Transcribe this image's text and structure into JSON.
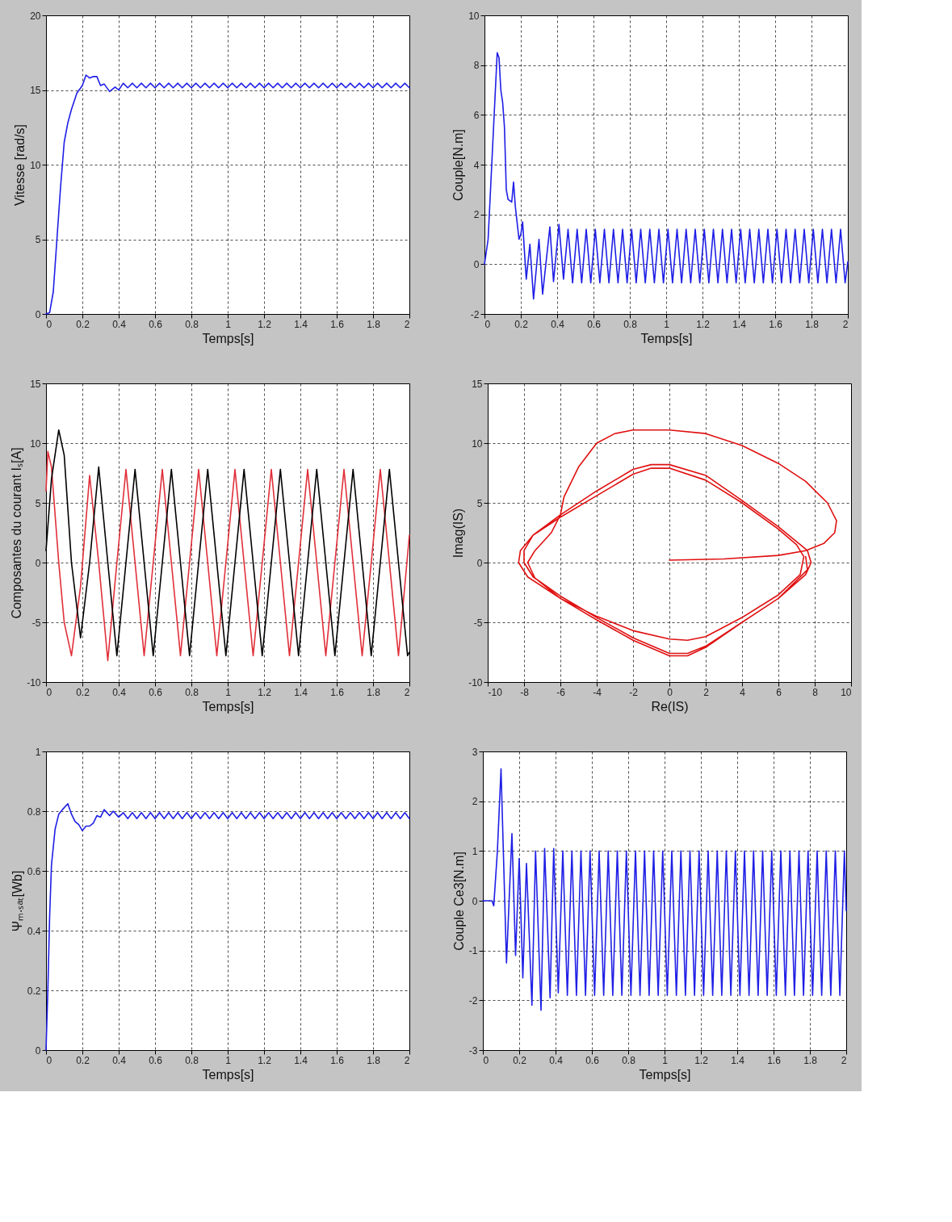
{
  "chart_data": [
    {
      "type": "line",
      "xlabel": "Temps[s]",
      "ylabel": "Vitesse [rad/s]",
      "xlim": [
        0,
        2
      ],
      "ylim": [
        0,
        20
      ],
      "xticks": [
        0,
        0.2,
        0.4,
        0.6,
        0.8,
        1,
        1.2,
        1.4,
        1.6,
        1.8,
        2
      ],
      "yticks": [
        0,
        5,
        10,
        15,
        20
      ],
      "grid": true,
      "series": [
        {
          "color": "#1f1fe6",
          "x": [
            0,
            0.02,
            0.04,
            0.06,
            0.08,
            0.1,
            0.12,
            0.14,
            0.17,
            0.2,
            0.22,
            0.24,
            0.26,
            0.28,
            0.3,
            0.32,
            0.35,
            0.38,
            0.4,
            0.425,
            0.45,
            0.475,
            0.5,
            0.525,
            0.55,
            0.575,
            0.6,
            0.625,
            0.65,
            0.675,
            0.7,
            0.725,
            0.75,
            0.775,
            0.8,
            0.825,
            0.85,
            0.875,
            0.9,
            0.925,
            0.95,
            0.975,
            1,
            1.025,
            1.05,
            1.075,
            1.1,
            1.125,
            1.15,
            1.175,
            1.2,
            1.225,
            1.25,
            1.275,
            1.3,
            1.325,
            1.35,
            1.375,
            1.4,
            1.425,
            1.45,
            1.475,
            1.5,
            1.525,
            1.55,
            1.575,
            1.6,
            1.625,
            1.65,
            1.675,
            1.7,
            1.725,
            1.75,
            1.775,
            1.8,
            1.825,
            1.85,
            1.875,
            1.9,
            1.925,
            1.95,
            1.975,
            2
          ],
          "values": [
            0,
            0.1,
            1.5,
            5,
            8.5,
            11.5,
            12.8,
            13.7,
            14.8,
            15.3,
            16,
            15.8,
            15.9,
            15.9,
            15.3,
            15.4,
            14.9,
            15.2,
            15.0,
            15.45,
            15.15,
            15.45,
            15.15,
            15.45,
            15.15,
            15.45,
            15.15,
            15.45,
            15.15,
            15.45,
            15.15,
            15.45,
            15.15,
            15.45,
            15.15,
            15.45,
            15.15,
            15.45,
            15.15,
            15.45,
            15.15,
            15.45,
            15.15,
            15.45,
            15.15,
            15.45,
            15.15,
            15.45,
            15.15,
            15.45,
            15.15,
            15.45,
            15.15,
            15.45,
            15.15,
            15.45,
            15.15,
            15.45,
            15.15,
            15.45,
            15.15,
            15.45,
            15.15,
            15.45,
            15.15,
            15.45,
            15.15,
            15.45,
            15.15,
            15.45,
            15.15,
            15.45,
            15.15,
            15.45,
            15.15,
            15.45,
            15.15,
            15.45,
            15.15,
            15.45,
            15.15,
            15.45,
            15.15
          ]
        }
      ]
    },
    {
      "type": "line",
      "xlabel": "Temps[s]",
      "ylabel": "Couple[N.m]",
      "xlim": [
        0,
        2
      ],
      "ylim": [
        -2,
        10
      ],
      "xticks": [
        0,
        0.2,
        0.4,
        0.6,
        0.8,
        1,
        1.2,
        1.4,
        1.6,
        1.8,
        2
      ],
      "yticks": [
        -2,
        0,
        2,
        4,
        6,
        8,
        10
      ],
      "grid": true,
      "series": [
        {
          "color": "#1f1fe6",
          "x": [
            0,
            0.02,
            0.04,
            0.06,
            0.07,
            0.08,
            0.09,
            0.1,
            0.11,
            0.12,
            0.13,
            0.15,
            0.16,
            0.17,
            0.19,
            0.2,
            0.21,
            0.22,
            0.23,
            0.25,
            0.27,
            0.3,
            0.32,
            0.36,
            0.38,
            0.41,
            0.435,
            0.46,
            0.485,
            0.51,
            0.535,
            0.56,
            0.585,
            0.61,
            0.635,
            0.66,
            0.685,
            0.71,
            0.735,
            0.76,
            0.785,
            0.81,
            0.835,
            0.86,
            0.885,
            0.91,
            0.935,
            0.96,
            0.985,
            1.01,
            1.035,
            1.06,
            1.085,
            1.11,
            1.135,
            1.16,
            1.185,
            1.21,
            1.235,
            1.26,
            1.285,
            1.31,
            1.335,
            1.36,
            1.385,
            1.41,
            1.435,
            1.46,
            1.485,
            1.51,
            1.535,
            1.56,
            1.585,
            1.61,
            1.635,
            1.66,
            1.685,
            1.71,
            1.735,
            1.76,
            1.785,
            1.81,
            1.835,
            1.86,
            1.885,
            1.91,
            1.935,
            1.96,
            1.985,
            2
          ],
          "values": [
            0,
            1,
            4,
            7,
            8.5,
            8.3,
            7,
            6.5,
            5.5,
            3,
            2.6,
            2.5,
            3.3,
            2.3,
            1,
            1.2,
            1.7,
            0.5,
            -0.6,
            0.8,
            -1.4,
            1,
            -1.2,
            1.5,
            -0.7,
            1.6,
            -0.6,
            1.4,
            -0.75,
            1.4,
            -0.75,
            1.4,
            -0.75,
            1.4,
            -0.75,
            1.4,
            -0.75,
            1.4,
            -0.75,
            1.4,
            -0.75,
            1.4,
            -0.75,
            1.4,
            -0.75,
            1.4,
            -0.75,
            1.4,
            -0.75,
            1.4,
            -0.75,
            1.4,
            -0.75,
            1.4,
            -0.75,
            1.4,
            -0.75,
            1.4,
            -0.75,
            1.4,
            -0.75,
            1.4,
            -0.75,
            1.4,
            -0.75,
            1.4,
            -0.75,
            1.4,
            -0.75,
            1.4,
            -0.75,
            1.4,
            -0.75,
            1.4,
            -0.75,
            1.4,
            -0.75,
            1.4,
            -0.75,
            1.4,
            -0.75,
            1.4,
            -0.75,
            1.4,
            -0.75,
            1.4,
            -0.75,
            1.4,
            -0.75,
            0.1
          ]
        }
      ]
    },
    {
      "type": "line",
      "xlabel": "Temps[s]",
      "ylabel": "Composantes du courant Iₛ[A]",
      "xlim": [
        0,
        2
      ],
      "ylim": [
        -10,
        15
      ],
      "xticks": [
        0,
        0.2,
        0.4,
        0.6,
        0.8,
        1,
        1.2,
        1.4,
        1.6,
        1.8,
        2
      ],
      "yticks": [
        -10,
        -5,
        0,
        5,
        10,
        15
      ],
      "grid": true,
      "series": [
        {
          "color": "#e0303a",
          "x": [
            0,
            0.01,
            0.03,
            0.07,
            0.1,
            0.14,
            0.19,
            0.24,
            0.29,
            0.34,
            0.39,
            0.44,
            0.49,
            0.54,
            0.59,
            0.64,
            0.69,
            0.74,
            0.79,
            0.84,
            0.89,
            0.94,
            0.99,
            1.04,
            1.09,
            1.14,
            1.19,
            1.24,
            1.29,
            1.34,
            1.39,
            1.44,
            1.49,
            1.54,
            1.59,
            1.64,
            1.69,
            1.74,
            1.79,
            1.84,
            1.89,
            1.94,
            2
          ],
          "values": [
            6,
            9.3,
            8,
            0,
            -5,
            -7.8,
            -2,
            7.3,
            0,
            -8.2,
            0,
            7.8,
            0,
            -7.8,
            0,
            7.8,
            0,
            -7.8,
            0,
            7.8,
            0,
            -7.8,
            0,
            7.8,
            0,
            -7.8,
            0,
            7.8,
            0,
            -7.8,
            0,
            7.8,
            0,
            -7.8,
            0,
            7.8,
            0,
            -7.8,
            0,
            7.8,
            0,
            -7.8,
            2.3
          ]
        },
        {
          "color": "#000000",
          "x": [
            0,
            0.03,
            0.07,
            0.1,
            0.14,
            0.19,
            0.24,
            0.29,
            0.34,
            0.39,
            0.44,
            0.49,
            0.54,
            0.59,
            0.64,
            0.69,
            0.74,
            0.79,
            0.84,
            0.89,
            0.94,
            0.99,
            1.04,
            1.09,
            1.14,
            1.19,
            1.24,
            1.29,
            1.34,
            1.39,
            1.44,
            1.49,
            1.54,
            1.59,
            1.64,
            1.69,
            1.74,
            1.79,
            1.84,
            1.89,
            1.94,
            1.99,
            2
          ],
          "values": [
            1,
            7,
            11.1,
            9,
            0,
            -6.3,
            0,
            8,
            0,
            -7.8,
            0,
            7.8,
            0,
            -7.8,
            0,
            7.8,
            0,
            -7.8,
            0,
            7.8,
            0,
            -7.8,
            0,
            7.8,
            0,
            -7.8,
            0,
            7.8,
            0,
            -7.8,
            0,
            7.8,
            0,
            -7.8,
            0,
            7.8,
            0,
            -7.8,
            0,
            7.8,
            0,
            -7.8,
            -7.5
          ]
        }
      ]
    },
    {
      "type": "line",
      "xlabel": "Re(IS)",
      "ylabel": "Imag(IS)",
      "xlim": [
        -10,
        10
      ],
      "ylim": [
        -10,
        15
      ],
      "xticks": [
        -10,
        -8,
        -6,
        -4,
        -2,
        0,
        2,
        4,
        6,
        8,
        10
      ],
      "yticks": [
        -10,
        -5,
        0,
        5,
        10,
        15
      ],
      "grid": true,
      "series": [
        {
          "color": "#e01010",
          "x": [
            0,
            3,
            6,
            7.5,
            8.5,
            9.1,
            9.2,
            8.7,
            7.5,
            6,
            4,
            2,
            0,
            -2,
            -3,
            -4,
            -5,
            -5.8,
            -6,
            -6.5,
            -7.4,
            -7.8,
            -7.4,
            -6,
            -4,
            -2,
            0,
            1,
            2,
            4,
            6,
            7.2,
            7.4,
            7,
            6,
            4,
            2,
            0,
            -1,
            -2,
            -4,
            -6,
            -7.5,
            -8.2,
            -8.3,
            -7.8,
            -6,
            -4,
            -2,
            0,
            1,
            2,
            4,
            6,
            7.5,
            7.8,
            7.6,
            6,
            4,
            2,
            0,
            -1,
            -2,
            -4,
            -6,
            -7.5,
            -8,
            -8,
            -7.5,
            -6,
            -4,
            -2,
            0,
            1,
            2,
            4,
            6,
            7.6,
            7.5
          ],
          "values": [
            0.2,
            0.3,
            0.6,
            1,
            1.6,
            2.5,
            3.5,
            5,
            6.8,
            8.3,
            9.8,
            10.8,
            11.1,
            11.1,
            10.8,
            10,
            8,
            5.5,
            4,
            2.5,
            1,
            0,
            -1.3,
            -3,
            -4.5,
            -5.7,
            -6.4,
            -6.5,
            -6.2,
            -4.6,
            -2.7,
            -1,
            0.5,
            1.5,
            2.8,
            5,
            6.9,
            7.9,
            7.9,
            7.4,
            5.6,
            3.8,
            2.3,
            1,
            0,
            -1.2,
            -3,
            -4.8,
            -6.5,
            -7.8,
            -7.8,
            -7.1,
            -5,
            -3,
            -1,
            0,
            1,
            3,
            5.2,
            7.3,
            8.2,
            8.2,
            7.8,
            6,
            4,
            2.3,
            1,
            0,
            -1.2,
            -2.8,
            -4.6,
            -6.3,
            -7.6,
            -7.6,
            -7,
            -5,
            -3,
            -0.6,
            0.5
          ]
        }
      ]
    },
    {
      "type": "line",
      "xlabel": "Temps[s]",
      "ylabel": "Ψₘ.ₛₐₜ[Wb]",
      "xlim": [
        0,
        2
      ],
      "ylim": [
        0,
        1
      ],
      "xticks": [
        0,
        0.2,
        0.4,
        0.6,
        0.8,
        1,
        1.2,
        1.4,
        1.6,
        1.8,
        2
      ],
      "yticks": [
        0,
        0.2,
        0.4,
        0.6,
        0.8,
        1
      ],
      "grid": true,
      "series": [
        {
          "color": "#1f1fe6",
          "x": [
            0,
            0.01,
            0.02,
            0.03,
            0.05,
            0.07,
            0.09,
            0.12,
            0.14,
            0.16,
            0.18,
            0.2,
            0.22,
            0.24,
            0.26,
            0.28,
            0.3,
            0.32,
            0.35,
            0.37,
            0.4,
            0.425,
            0.45,
            0.475,
            0.5,
            0.525,
            0.55,
            0.575,
            0.6,
            0.625,
            0.65,
            0.675,
            0.7,
            0.725,
            0.75,
            0.775,
            0.8,
            0.825,
            0.85,
            0.875,
            0.9,
            0.925,
            0.95,
            0.975,
            1,
            1.025,
            1.05,
            1.075,
            1.1,
            1.125,
            1.15,
            1.175,
            1.2,
            1.225,
            1.25,
            1.275,
            1.3,
            1.325,
            1.35,
            1.375,
            1.4,
            1.425,
            1.45,
            1.475,
            1.5,
            1.525,
            1.55,
            1.575,
            1.6,
            1.625,
            1.65,
            1.675,
            1.7,
            1.725,
            1.75,
            1.775,
            1.8,
            1.825,
            1.85,
            1.875,
            1.9,
            1.925,
            1.95,
            1.975,
            2
          ],
          "values": [
            0,
            0.2,
            0.45,
            0.62,
            0.74,
            0.79,
            0.805,
            0.825,
            0.79,
            0.765,
            0.755,
            0.735,
            0.75,
            0.75,
            0.76,
            0.785,
            0.78,
            0.805,
            0.785,
            0.8,
            0.78,
            0.795,
            0.775,
            0.795,
            0.775,
            0.795,
            0.775,
            0.795,
            0.775,
            0.795,
            0.775,
            0.795,
            0.775,
            0.795,
            0.775,
            0.795,
            0.775,
            0.795,
            0.775,
            0.795,
            0.775,
            0.795,
            0.775,
            0.795,
            0.775,
            0.795,
            0.775,
            0.795,
            0.775,
            0.795,
            0.775,
            0.795,
            0.775,
            0.795,
            0.775,
            0.795,
            0.775,
            0.795,
            0.775,
            0.795,
            0.775,
            0.795,
            0.775,
            0.795,
            0.775,
            0.795,
            0.775,
            0.795,
            0.775,
            0.795,
            0.775,
            0.795,
            0.775,
            0.795,
            0.775,
            0.795,
            0.775,
            0.795,
            0.775,
            0.795,
            0.775,
            0.795,
            0.775,
            0.795,
            0.775
          ]
        }
      ]
    },
    {
      "type": "line",
      "xlabel": "Temps[s]",
      "ylabel": "Couple Ce3[N.m]",
      "xlim": [
        0,
        2
      ],
      "ylim": [
        -3,
        3
      ],
      "xticks": [
        0,
        0.2,
        0.4,
        0.6,
        0.8,
        1,
        1.2,
        1.4,
        1.6,
        1.8,
        2
      ],
      "yticks": [
        -3,
        -2,
        -1,
        0,
        1,
        2,
        3
      ],
      "grid": true,
      "series": [
        {
          "color": "#1f1fe6",
          "x": [
            0,
            0.05,
            0.06,
            0.08,
            0.1,
            0.13,
            0.16,
            0.18,
            0.2,
            0.22,
            0.24,
            0.27,
            0.29,
            0.32,
            0.34,
            0.37,
            0.39,
            0.415,
            0.44,
            0.465,
            0.49,
            0.515,
            0.54,
            0.565,
            0.59,
            0.615,
            0.64,
            0.665,
            0.69,
            0.715,
            0.74,
            0.765,
            0.79,
            0.815,
            0.84,
            0.865,
            0.89,
            0.915,
            0.94,
            0.965,
            0.99,
            1.015,
            1.04,
            1.065,
            1.09,
            1.115,
            1.14,
            1.165,
            1.19,
            1.215,
            1.24,
            1.265,
            1.29,
            1.315,
            1.34,
            1.365,
            1.39,
            1.415,
            1.44,
            1.465,
            1.49,
            1.515,
            1.54,
            1.565,
            1.59,
            1.615,
            1.64,
            1.665,
            1.69,
            1.715,
            1.74,
            1.765,
            1.79,
            1.815,
            1.84,
            1.865,
            1.89,
            1.915,
            1.94,
            1.965,
            1.99,
            2
          ],
          "values": [
            0,
            0,
            -0.1,
            1,
            2.65,
            -1.25,
            1.35,
            -1.1,
            0.85,
            -1.55,
            0.75,
            -2.1,
            1,
            -2.2,
            1.05,
            -1.95,
            1.05,
            -1.85,
            1,
            -1.9,
            1,
            -1.9,
            1,
            -1.9,
            1,
            -1.9,
            1,
            -1.9,
            1,
            -1.9,
            1,
            -1.9,
            1,
            -1.9,
            1,
            -1.9,
            1,
            -1.9,
            1,
            -1.9,
            1,
            -1.9,
            1,
            -1.9,
            1,
            -1.9,
            1,
            -1.9,
            1,
            -1.9,
            1,
            -1.9,
            1,
            -1.9,
            1,
            -1.9,
            1,
            -1.9,
            1,
            -1.9,
            1,
            -1.9,
            1,
            -1.9,
            1,
            -1.9,
            1,
            -1.9,
            1,
            -1.9,
            1,
            -1.9,
            1,
            -1.9,
            1,
            -1.9,
            1,
            -1.9,
            1,
            -1.9,
            1,
            -0.2
          ]
        }
      ]
    }
  ]
}
